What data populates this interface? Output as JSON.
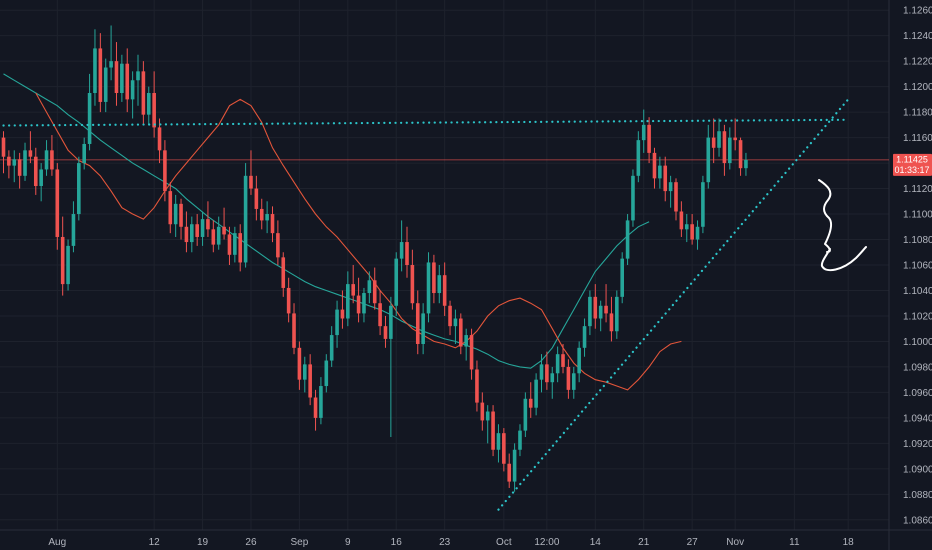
{
  "chart_data": {
    "type": "candlestick",
    "grid": true,
    "colors": {
      "background": "#131722",
      "grid": "#1e222d",
      "up": "#26a69a",
      "down": "#ef5350",
      "ma_short": "#e2553a",
      "ma_long": "#26a69a",
      "trendline": "#2cc4c9",
      "annotation": "#ffffff",
      "price_tag": "#ef5350"
    },
    "x_axis": {
      "ticks": [
        {
          "bar": 10,
          "label": "Aug"
        },
        {
          "bar": 28,
          "label": "12"
        },
        {
          "bar": 37,
          "label": "19"
        },
        {
          "bar": 46,
          "label": "26"
        },
        {
          "bar": 55,
          "label": "Sep"
        },
        {
          "bar": 64,
          "label": "9"
        },
        {
          "bar": 73,
          "label": "16"
        },
        {
          "bar": 82,
          "label": "23"
        },
        {
          "bar": 93,
          "label": "Oct"
        },
        {
          "bar": 101,
          "label": "12:00"
        },
        {
          "bar": 110,
          "label": "14"
        },
        {
          "bar": 119,
          "label": "21"
        },
        {
          "bar": 128,
          "label": "27"
        },
        {
          "bar": 136,
          "label": "Nov"
        },
        {
          "bar": 147,
          "label": "11"
        },
        {
          "bar": 157,
          "label": "18"
        }
      ]
    },
    "y_axis": {
      "range": [
        1.0852,
        1.1268
      ],
      "ticks": [
        "1.12600",
        "1.12400",
        "1.12200",
        "1.12000",
        "1.11800",
        "1.11600",
        "1.11400",
        "1.11200",
        "1.11000",
        "1.10800",
        "1.10600",
        "1.10400",
        "1.10200",
        "1.10000",
        "1.09800",
        "1.09600",
        "1.09400",
        "1.09200",
        "1.09000",
        "1.08800",
        "1.08600"
      ]
    },
    "price_tag": {
      "price": 1.11425,
      "label": "1.11425",
      "countdown": "01:33:17"
    },
    "candles": [
      [
        1.116,
        1.1165,
        1.1132,
        1.1145
      ],
      [
        1.1145,
        1.115,
        1.1128,
        1.1138
      ],
      [
        1.1138,
        1.115,
        1.1125,
        1.1143
      ],
      [
        1.1143,
        1.1148,
        1.112,
        1.113
      ],
      [
        1.113,
        1.1156,
        1.1126,
        1.115
      ],
      [
        1.115,
        1.1165,
        1.114,
        1.1145
      ],
      [
        1.1145,
        1.1152,
        1.1115,
        1.1122
      ],
      [
        1.1122,
        1.114,
        1.111,
        1.1135
      ],
      [
        1.1135,
        1.1158,
        1.113,
        1.115
      ],
      [
        1.115,
        1.1162,
        1.113,
        1.1135
      ],
      [
        1.1135,
        1.114,
        1.1072,
        1.1082
      ],
      [
        1.1082,
        1.1098,
        1.1036,
        1.1045
      ],
      [
        1.1045,
        1.108,
        1.104,
        1.1075
      ],
      [
        1.1075,
        1.111,
        1.107,
        1.11
      ],
      [
        1.11,
        1.1145,
        1.1095,
        1.114
      ],
      [
        1.114,
        1.116,
        1.1135,
        1.1155
      ],
      [
        1.1155,
        1.121,
        1.115,
        1.1195
      ],
      [
        1.1195,
        1.1245,
        1.1185,
        1.123
      ],
      [
        1.123,
        1.1242,
        1.118,
        1.1188
      ],
      [
        1.1188,
        1.1222,
        1.118,
        1.1215
      ],
      [
        1.1215,
        1.1248,
        1.1205,
        1.122
      ],
      [
        1.122,
        1.1235,
        1.1185,
        1.1195
      ],
      [
        1.1195,
        1.1225,
        1.1188,
        1.1218
      ],
      [
        1.1218,
        1.123,
        1.118,
        1.119
      ],
      [
        1.119,
        1.1212,
        1.1175,
        1.1205
      ],
      [
        1.1205,
        1.1225,
        1.1185,
        1.1212
      ],
      [
        1.1212,
        1.122,
        1.117,
        1.1178
      ],
      [
        1.1178,
        1.12,
        1.117,
        1.1195
      ],
      [
        1.1195,
        1.1212,
        1.116,
        1.1168
      ],
      [
        1.1168,
        1.1175,
        1.114,
        1.115
      ],
      [
        1.115,
        1.1158,
        1.111,
        1.1118
      ],
      [
        1.1118,
        1.1125,
        1.1085,
        1.1092
      ],
      [
        1.1092,
        1.1115,
        1.1082,
        1.1108
      ],
      [
        1.1108,
        1.1112,
        1.108,
        1.109
      ],
      [
        1.109,
        1.1102,
        1.107,
        1.1078
      ],
      [
        1.1078,
        1.1098,
        1.107,
        1.1092
      ],
      [
        1.1092,
        1.11,
        1.1075,
        1.1082
      ],
      [
        1.1082,
        1.1102,
        1.1075,
        1.1096
      ],
      [
        1.1096,
        1.111,
        1.1082,
        1.1088
      ],
      [
        1.1088,
        1.1095,
        1.107,
        1.1076
      ],
      [
        1.1076,
        1.1098,
        1.1072,
        1.109
      ],
      [
        1.109,
        1.1105,
        1.108,
        1.1084
      ],
      [
        1.1084,
        1.109,
        1.106,
        1.1068
      ],
      [
        1.1068,
        1.109,
        1.1062,
        1.1085
      ],
      [
        1.1085,
        1.1092,
        1.1055,
        1.1062
      ],
      [
        1.1062,
        1.114,
        1.1058,
        1.113
      ],
      [
        1.113,
        1.115,
        1.1115,
        1.112
      ],
      [
        1.112,
        1.113,
        1.1095,
        1.1104
      ],
      [
        1.1104,
        1.1112,
        1.1088,
        1.1095
      ],
      [
        1.1095,
        1.111,
        1.1085,
        1.11
      ],
      [
        1.11,
        1.1106,
        1.1078,
        1.1085
      ],
      [
        1.1085,
        1.1095,
        1.106,
        1.1066
      ],
      [
        1.1066,
        1.107,
        1.1035,
        1.1042
      ],
      [
        1.1042,
        1.105,
        1.1015,
        1.1022
      ],
      [
        1.1022,
        1.103,
        1.099,
        1.0995
      ],
      [
        1.0995,
        1.1,
        1.0962,
        1.097
      ],
      [
        1.097,
        1.0988,
        1.096,
        1.0982
      ],
      [
        1.0982,
        1.099,
        1.095,
        1.0956
      ],
      [
        1.0956,
        1.0962,
        1.093,
        1.094
      ],
      [
        1.094,
        1.0972,
        1.0935,
        1.0965
      ],
      [
        1.0965,
        1.099,
        1.096,
        1.0985
      ],
      [
        1.0985,
        1.1012,
        1.098,
        1.1005
      ],
      [
        1.1005,
        1.1032,
        1.0995,
        1.1025
      ],
      [
        1.1025,
        1.104,
        1.101,
        1.1018
      ],
      [
        1.1018,
        1.1055,
        1.1012,
        1.1045
      ],
      [
        1.1045,
        1.106,
        1.103,
        1.1036
      ],
      [
        1.1036,
        1.105,
        1.1015,
        1.1022
      ],
      [
        1.1022,
        1.1042,
        1.1015,
        1.1038
      ],
      [
        1.1038,
        1.1055,
        1.103,
        1.1048
      ],
      [
        1.1048,
        1.1058,
        1.1025,
        1.103
      ],
      [
        1.103,
        1.104,
        1.1005,
        1.1012
      ],
      [
        1.1012,
        1.102,
        1.0995,
        1.1002
      ],
      [
        1.1002,
        1.1035,
        1.0925,
        1.1028
      ],
      [
        1.1028,
        1.107,
        1.102,
        1.1065
      ],
      [
        1.1065,
        1.1095,
        1.1055,
        1.1078
      ],
      [
        1.1078,
        1.109,
        1.105,
        1.106
      ],
      [
        1.106,
        1.1072,
        1.1025,
        1.103
      ],
      [
        1.103,
        1.104,
        1.099,
        1.0998
      ],
      [
        1.0998,
        1.103,
        1.099,
        1.1022
      ],
      [
        1.1022,
        1.107,
        1.1015,
        1.1062
      ],
      [
        1.1062,
        1.1068,
        1.103,
        1.1038
      ],
      [
        1.1038,
        1.106,
        1.103,
        1.1052
      ],
      [
        1.1052,
        1.1062,
        1.102,
        1.1028
      ],
      [
        1.1028,
        1.1032,
        1.1005,
        1.1012
      ],
      [
        1.1012,
        1.1025,
        1.0998,
        1.1018
      ],
      [
        1.1018,
        1.1022,
        1.099,
        1.0996
      ],
      [
        1.0996,
        1.101,
        1.0985,
        1.1005
      ],
      [
        1.1005,
        1.101,
        1.097,
        1.0978
      ],
      [
        1.0978,
        1.0985,
        1.0945,
        1.0952
      ],
      [
        1.0952,
        1.096,
        1.093,
        1.0938
      ],
      [
        1.0938,
        1.095,
        1.092,
        1.0945
      ],
      [
        1.0945,
        1.095,
        1.091,
        1.0915
      ],
      [
        1.0915,
        1.0935,
        1.0905,
        1.0928
      ],
      [
        1.0928,
        1.0932,
        1.0898,
        1.0904
      ],
      [
        1.0904,
        1.0912,
        1.0885,
        1.089
      ],
      [
        1.089,
        1.092,
        1.0882,
        1.0915
      ],
      [
        1.0915,
        1.0935,
        1.091,
        1.093
      ],
      [
        1.093,
        1.096,
        1.0925,
        1.0955
      ],
      [
        1.0955,
        1.0968,
        1.094,
        1.0948
      ],
      [
        1.0948,
        1.0975,
        1.0942,
        1.097
      ],
      [
        1.097,
        1.099,
        1.096,
        1.0982
      ],
      [
        1.0982,
        1.0992,
        1.0962,
        1.0968
      ],
      [
        1.0968,
        1.098,
        1.0955,
        1.0975
      ],
      [
        1.0975,
        1.0996,
        1.0968,
        1.099
      ],
      [
        1.099,
        1.0998,
        1.0975,
        1.098
      ],
      [
        1.098,
        1.0986,
        1.0955,
        1.0962
      ],
      [
        1.0962,
        1.098,
        1.0955,
        1.0975
      ],
      [
        1.0975,
        1.1,
        1.0968,
        1.0995
      ],
      [
        1.0995,
        1.1018,
        1.0988,
        1.1012
      ],
      [
        1.1012,
        1.104,
        1.1005,
        1.1035
      ],
      [
        1.1035,
        1.1045,
        1.101,
        1.1018
      ],
      [
        1.1018,
        1.1032,
        1.1008,
        1.1028
      ],
      [
        1.1028,
        1.1045,
        1.1015,
        1.1022
      ],
      [
        1.1022,
        1.1035,
        1.1,
        1.1008
      ],
      [
        1.1008,
        1.104,
        1.1002,
        1.1035
      ],
      [
        1.1035,
        1.107,
        1.103,
        1.1065
      ],
      [
        1.1065,
        1.11,
        1.106,
        1.1095
      ],
      [
        1.1095,
        1.1135,
        1.109,
        1.113
      ],
      [
        1.113,
        1.1165,
        1.1125,
        1.1158
      ],
      [
        1.1158,
        1.1182,
        1.1148,
        1.117
      ],
      [
        1.117,
        1.1176,
        1.114,
        1.1148
      ],
      [
        1.1148,
        1.1152,
        1.112,
        1.1128
      ],
      [
        1.1128,
        1.1145,
        1.112,
        1.1138
      ],
      [
        1.1138,
        1.1145,
        1.111,
        1.1118
      ],
      [
        1.1118,
        1.113,
        1.1105,
        1.1125
      ],
      [
        1.1125,
        1.1128,
        1.1095,
        1.1102
      ],
      [
        1.1102,
        1.111,
        1.1082,
        1.1088
      ],
      [
        1.1088,
        1.11,
        1.1078,
        1.1092
      ],
      [
        1.1092,
        1.11,
        1.1076,
        1.108
      ],
      [
        1.108,
        1.1095,
        1.1072,
        1.109
      ],
      [
        1.109,
        1.113,
        1.1085,
        1.1125
      ],
      [
        1.1125,
        1.117,
        1.112,
        1.116
      ],
      [
        1.116,
        1.1175,
        1.114,
        1.1152
      ],
      [
        1.1152,
        1.1175,
        1.1145,
        1.1165
      ],
      [
        1.1165,
        1.117,
        1.113,
        1.114
      ],
      [
        1.114,
        1.1168,
        1.1135,
        1.116
      ],
      [
        1.116,
        1.1175,
        1.115,
        1.1158
      ],
      [
        1.1158,
        1.116,
        1.113,
        1.1136
      ],
      [
        1.1136,
        1.1148,
        1.113,
        1.11425
      ]
    ],
    "ma_short": [
      1.1195,
      1.118,
      1.1165,
      1.115,
      1.1142,
      1.1138,
      1.113,
      1.1118,
      1.1105,
      1.11,
      1.1096,
      1.1105,
      1.1118,
      1.113,
      1.114,
      1.115,
      1.116,
      1.117,
      1.1185,
      1.119,
      1.1185,
      1.1172,
      1.1152,
      1.1138,
      1.1125,
      1.1112,
      1.11,
      1.109,
      1.1082,
      1.1072,
      1.1062,
      1.1052,
      1.104,
      1.103,
      1.1018,
      1.101,
      1.1005,
      1.1,
      1.0998,
      1.0995,
      1.1,
      1.1008,
      1.102,
      1.1028,
      1.1032,
      1.1034,
      1.103,
      1.1025,
      1.101,
      1.0995,
      1.0983,
      1.0975,
      1.097,
      1.0968,
      1.0965,
      1.0962,
      1.097,
      1.098,
      1.0992,
      1.0998,
      1.1
    ],
    "ma_short_start": 6,
    "ma_long": [
      1.121,
      1.1205,
      1.12,
      1.1195,
      1.119,
      1.1185,
      1.1178,
      1.1172,
      1.1165,
      1.1158,
      1.1152,
      1.1146,
      1.114,
      1.1135,
      1.113,
      1.1125,
      1.112,
      1.1112,
      1.1105,
      1.1098,
      1.1092,
      1.1086,
      1.108,
      1.1074,
      1.1068,
      1.1062,
      1.1057,
      1.1052,
      1.1047,
      1.1043,
      1.104,
      1.1037,
      1.1034,
      1.1031,
      1.1028,
      1.1025,
      1.1021,
      1.1016,
      1.1012,
      1.1008,
      1.1005,
      1.1002,
      1.1,
      1.0997,
      1.0994,
      1.099,
      1.0985,
      1.0982,
      1.098,
      1.0979,
      1.0985,
      1.0995,
      1.101,
      1.1025,
      1.104,
      1.1055,
      1.1065,
      1.1075,
      1.1083,
      1.109,
      1.1094
    ],
    "ma_long_start": 0,
    "ma_long_step": 2,
    "ma_short_step": 2,
    "lines": [
      {
        "name": "resistance",
        "from": {
          "bar": 0,
          "price": 1.11695
        },
        "to": {
          "bar": 157,
          "price": 1.1174
        }
      },
      {
        "name": "ascending-support",
        "from": {
          "bar": 92,
          "price": 1.0868
        },
        "to": {
          "bar": 157,
          "price": 1.119
        }
      }
    ]
  }
}
